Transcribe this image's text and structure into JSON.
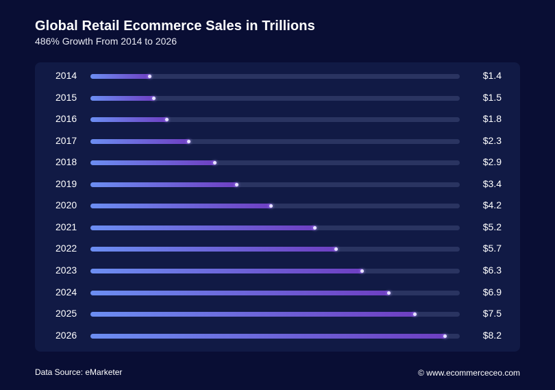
{
  "header": {
    "title": "Global Retail Ecommerce Sales in Trillions",
    "subtitle": "486% Growth From 2014 to 2026"
  },
  "footer": {
    "source": "Data Source: eMarketer",
    "copyright": "© www.ecommerceceo.com"
  },
  "colors": {
    "background": "#090e34",
    "panel": "#111a45",
    "track": "#2a3461",
    "bar_start": "#6c8ef2",
    "bar_end": "#6e3fc2"
  },
  "chart_data": {
    "type": "bar",
    "orientation": "horizontal",
    "categories": [
      "2014",
      "2015",
      "2016",
      "2017",
      "2018",
      "2019",
      "2020",
      "2021",
      "2022",
      "2023",
      "2024",
      "2025",
      "2026"
    ],
    "values": [
      1.4,
      1.5,
      1.8,
      2.3,
      2.9,
      3.4,
      4.2,
      5.2,
      5.7,
      6.3,
      6.9,
      7.5,
      8.2
    ],
    "value_labels": [
      "$1.4",
      "$1.5",
      "$1.8",
      "$2.3",
      "$2.9",
      "$3.4",
      "$4.2",
      "$5.2",
      "$5.7",
      "$6.3",
      "$6.9",
      "$7.5",
      "$8.2"
    ],
    "title": "Global Retail Ecommerce Sales in Trillions",
    "subtitle": "486% Growth From 2014 to 2026",
    "xlim": [
      0,
      8.5
    ],
    "grid": false,
    "legend": "none"
  }
}
